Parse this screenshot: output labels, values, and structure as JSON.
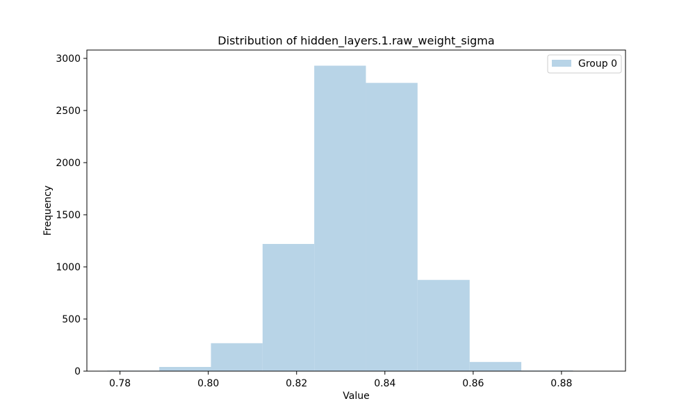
{
  "chart_data": {
    "type": "bar",
    "title": "Distribution of hidden_layers.1.raw_weight_sigma",
    "xlabel": "Value",
    "ylabel": "Frequency",
    "xlim": [
      0.7725,
      0.8945
    ],
    "ylim": [
      0,
      3080
    ],
    "x_ticks": [
      0.78,
      0.8,
      0.82,
      0.84,
      0.86,
      0.88
    ],
    "x_tick_labels": [
      "0.78",
      "0.80",
      "0.82",
      "0.84",
      "0.86",
      "0.88"
    ],
    "y_ticks": [
      0,
      500,
      1000,
      1500,
      2000,
      2500,
      3000
    ],
    "y_tick_labels": [
      "0",
      "500",
      "1000",
      "1500",
      "2000",
      "2500",
      "3000"
    ],
    "grid": false,
    "legend_position": "top-right",
    "series": [
      {
        "name": "Group 0",
        "color": "#b8d4e7",
        "bins": [
          {
            "x0": 0.7771,
            "x1": 0.7889,
            "count": 5
          },
          {
            "x0": 0.7889,
            "x1": 0.8006,
            "count": 40
          },
          {
            "x0": 0.8006,
            "x1": 0.8123,
            "count": 268
          },
          {
            "x0": 0.8123,
            "x1": 0.824,
            "count": 1220
          },
          {
            "x0": 0.824,
            "x1": 0.8357,
            "count": 2930
          },
          {
            "x0": 0.8357,
            "x1": 0.8474,
            "count": 2765
          },
          {
            "x0": 0.8474,
            "x1": 0.8592,
            "count": 875
          },
          {
            "x0": 0.8592,
            "x1": 0.8709,
            "count": 88
          },
          {
            "x0": 0.8709,
            "x1": 0.8826,
            "count": 6
          },
          {
            "x0": 0.8826,
            "x1": 0.8943,
            "count": 1
          }
        ]
      }
    ]
  }
}
